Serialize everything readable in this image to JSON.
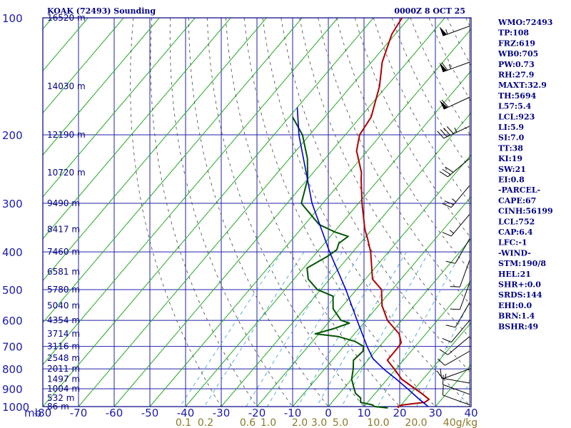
{
  "header": {
    "title": "KOAK (72493) Sounding",
    "datetime": "0000Z  8 OCT 25"
  },
  "indices": [
    "WMO:72493",
    "TP:108",
    "FRZ:619",
    "WB0:705",
    "PW:0.73",
    "RH:27.9",
    "MAXT:32.9",
    "TH:5694",
    "L57:5.4",
    "LCL:923",
    "LI:5.9",
    "SI:7.0",
    "TT:38",
    "KI:19",
    "SW:21",
    "EI:0.8",
    "-PARCEL-",
    "CAPE:67",
    "CINH:56199",
    "LCL:752",
    "CAP:6.4",
    "LFC:-1",
    "-WIND-",
    "STM:190/8",
    "HEL:21",
    "SHR+:0.0",
    "SRDS:144",
    "EHI:0.0",
    "BRN:1.4",
    "BSHR:49"
  ],
  "colors": {
    "frame": "#000080",
    "isotherm": "#2222aa",
    "dry_adiabat": "#22aa22",
    "moist_adiabat": "#444444",
    "mixing_ratio": "#3399cc",
    "temperature": "#b00000",
    "dewpoint": "#005500",
    "parcel": "#0000cc"
  },
  "chart_data": {
    "type": "line",
    "title": "KOAK (72493) Sounding",
    "xlabel": "",
    "ylabel": "mb",
    "pressure_axis": {
      "scale": "log",
      "range_mb": [
        1000,
        100
      ],
      "ticks": [
        100,
        200,
        300,
        400,
        500,
        600,
        700,
        800,
        900,
        1000
      ]
    },
    "temperature_axis": {
      "range_c": [
        -80,
        40
      ],
      "ticks": [
        -80,
        -70,
        -60,
        -50,
        -40,
        -30,
        -20,
        -10,
        0,
        10,
        20,
        30,
        40
      ],
      "tick_labels": [
        "-80",
        "-70",
        "-60",
        "-50",
        "-40",
        "-30",
        "-20",
        "-10",
        "0",
        "10",
        "20",
        "30",
        "40"
      ]
    },
    "mixing_ratio_labels": [
      "0.1",
      "0.2",
      "0.6",
      "1.0",
      "2.0",
      "3.0",
      "5.0",
      "10.0",
      "20.0",
      "40g/kg"
    ],
    "height_labels": [
      {
        "p": 100,
        "label": "16520 m"
      },
      {
        "p": 150,
        "label": "14030 m"
      },
      {
        "p": 200,
        "label": "12190 m"
      },
      {
        "p": 250,
        "label": "10720 m"
      },
      {
        "p": 300,
        "label": "9490 m"
      },
      {
        "p": 350,
        "label": "8417 m"
      },
      {
        "p": 400,
        "label": "7460 m"
      },
      {
        "p": 450,
        "label": "6581 m"
      },
      {
        "p": 500,
        "label": "5780 m"
      },
      {
        "p": 550,
        "label": "5040 m"
      },
      {
        "p": 600,
        "label": "4354 m"
      },
      {
        "p": 650,
        "label": "3714 m"
      },
      {
        "p": 700,
        "label": "3116 m"
      },
      {
        "p": 750,
        "label": "2548 m"
      },
      {
        "p": 800,
        "label": "2011 m"
      },
      {
        "p": 850,
        "label": "1497 m"
      },
      {
        "p": 900,
        "label": "1004 m"
      },
      {
        "p": 950,
        "label": "532 m"
      },
      {
        "p": 1000,
        "label": "86 m"
      }
    ],
    "series": [
      {
        "name": "",
        "role": "temperature",
        "points": [
          [
            1008,
            20.0
          ],
          [
            1000,
            19.5
          ],
          [
            990,
            20.5
          ],
          [
            975,
            26.0
          ],
          [
            958,
            26.5
          ],
          [
            925,
            23.0
          ],
          [
            850,
            14.0
          ],
          [
            800,
            9.5
          ],
          [
            760,
            5.5
          ],
          [
            700,
            5.4
          ],
          [
            685,
            5.2
          ],
          [
            650,
            2.5
          ],
          [
            600,
            -4.0
          ],
          [
            550,
            -9.0
          ],
          [
            500,
            -13.0
          ],
          [
            470,
            -18.0
          ],
          [
            400,
            -25.0
          ],
          [
            370,
            -29.0
          ],
          [
            350,
            -32.0
          ],
          [
            300,
            -39.0
          ],
          [
            260,
            -45.0
          ],
          [
            250,
            -46.5
          ],
          [
            220,
            -53.0
          ],
          [
            200,
            -56.0
          ],
          [
            180,
            -57.0
          ],
          [
            150,
            -62.0
          ],
          [
            130,
            -67.0
          ],
          [
            110,
            -71.0
          ],
          [
            100,
            -72.0
          ]
        ]
      },
      {
        "name": "",
        "role": "dewpoint",
        "points": [
          [
            1008,
            17.0
          ],
          [
            1000,
            13.0
          ],
          [
            990,
            12.0
          ],
          [
            975,
            8.0
          ],
          [
            950,
            7.0
          ],
          [
            925,
            4.5
          ],
          [
            900,
            3.0
          ],
          [
            850,
            0.0
          ],
          [
            800,
            -2.0
          ],
          [
            760,
            -4.0
          ],
          [
            720,
            -3.5
          ],
          [
            700,
            -4.5
          ],
          [
            680,
            -8.0
          ],
          [
            660,
            -14.0
          ],
          [
            650,
            -21.0
          ],
          [
            630,
            -17.0
          ],
          [
            610,
            -14.0
          ],
          [
            600,
            -17.0
          ],
          [
            560,
            -22.0
          ],
          [
            520,
            -25.0
          ],
          [
            500,
            -31.0
          ],
          [
            470,
            -36.0
          ],
          [
            440,
            -39.0
          ],
          [
            410,
            -36.0
          ],
          [
            395,
            -35.0
          ],
          [
            380,
            -36.0
          ],
          [
            365,
            -35.0
          ],
          [
            355,
            -40.0
          ],
          [
            340,
            -46.0
          ],
          [
            300,
            -56.0
          ],
          [
            260,
            -60.0
          ],
          [
            230,
            -65.0
          ],
          [
            200,
            -72.0
          ],
          [
            180,
            -79.0
          ]
        ]
      },
      {
        "name": "",
        "role": "parcel",
        "points": [
          [
            1000,
            28.0
          ],
          [
            950,
            23.0
          ],
          [
            900,
            18.0
          ],
          [
            850,
            12.5
          ],
          [
            800,
            6.5
          ],
          [
            752,
            1.0
          ],
          [
            700,
            -3.5
          ],
          [
            600,
            -12.5
          ],
          [
            500,
            -23.0
          ],
          [
            400,
            -36.5
          ],
          [
            300,
            -53.0
          ],
          [
            200,
            -73.0
          ],
          [
            170,
            -80.0
          ]
        ]
      }
    ],
    "wind_barbs": [
      {
        "p": 105,
        "dir": 250,
        "spd": 55
      },
      {
        "p": 130,
        "dir": 250,
        "spd": 65
      },
      {
        "p": 160,
        "dir": 245,
        "spd": 60
      },
      {
        "p": 190,
        "dir": 245,
        "spd": 45
      },
      {
        "p": 230,
        "dir": 230,
        "spd": 30
      },
      {
        "p": 270,
        "dir": 220,
        "spd": 25
      },
      {
        "p": 320,
        "dir": 220,
        "spd": 15
      },
      {
        "p": 370,
        "dir": 210,
        "spd": 10
      },
      {
        "p": 420,
        "dir": 200,
        "spd": 10
      },
      {
        "p": 480,
        "dir": 200,
        "spd": 10
      },
      {
        "p": 540,
        "dir": 210,
        "spd": 10
      },
      {
        "p": 600,
        "dir": 220,
        "spd": 10
      },
      {
        "p": 660,
        "dir": 230,
        "spd": 10
      },
      {
        "p": 720,
        "dir": 240,
        "spd": 10
      },
      {
        "p": 800,
        "dir": 250,
        "spd": 10
      },
      {
        "p": 870,
        "dir": 280,
        "spd": 15
      },
      {
        "p": 930,
        "dir": 290,
        "spd": 10
      },
      {
        "p": 990,
        "dir": 290,
        "spd": 10
      }
    ]
  }
}
